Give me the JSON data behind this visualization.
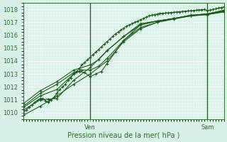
{
  "title": "",
  "xlabel": "Pression niveau de la mer( hPa )",
  "ylabel": "",
  "bg_color": "#d8f0e8",
  "plot_bg_color": "#d8f0e8",
  "grid_color": "#ffffff",
  "line_color": "#1a5c1a",
  "axis_color": "#2d6e2d",
  "tick_color": "#2d6e2d",
  "label_color": "#2d6e2d",
  "xlim": [
    0,
    72
  ],
  "ylim": [
    1009.5,
    1018.5
  ],
  "yticks": [
    1010,
    1011,
    1012,
    1013,
    1014,
    1015,
    1016,
    1017,
    1018
  ],
  "xtick_positions": [
    24,
    66
  ],
  "xtick_labels": [
    "Ven",
    "Sam"
  ],
  "vlines": [
    24,
    66
  ],
  "series": [
    {
      "x": [
        0,
        1,
        2,
        3,
        4,
        5,
        6,
        7,
        8,
        9,
        10,
        11,
        12,
        13,
        14,
        15,
        16,
        17,
        18,
        19,
        20,
        21,
        22,
        23,
        24,
        25,
        26,
        27,
        28,
        29,
        30,
        31,
        32,
        33,
        34,
        35,
        36,
        37,
        38,
        39,
        40,
        41,
        42,
        43,
        44,
        45,
        46,
        47,
        48,
        49,
        50,
        51,
        52,
        53,
        54,
        55,
        56,
        57,
        58,
        59,
        60,
        61,
        62,
        63,
        64,
        65,
        66,
        67,
        68,
        69,
        70,
        71,
        72
      ],
      "y": [
        1010.0,
        1010.2,
        1010.4,
        1010.6,
        1010.8,
        1010.95,
        1011.1,
        1011.1,
        1010.9,
        1010.8,
        1011.0,
        1011.2,
        1011.5,
        1011.8,
        1012.0,
        1012.2,
        1012.5,
        1012.7,
        1013.0,
        1013.2,
        1013.4,
        1013.7,
        1013.9,
        1014.1,
        1014.3,
        1014.5,
        1014.7,
        1014.9,
        1015.1,
        1015.3,
        1015.5,
        1015.7,
        1015.9,
        1016.1,
        1016.25,
        1016.4,
        1016.55,
        1016.7,
        1016.8,
        1016.9,
        1017.0,
        1017.1,
        1017.2,
        1017.3,
        1017.4,
        1017.5,
        1017.55,
        1017.6,
        1017.65,
        1017.7,
        1017.7,
        1017.72,
        1017.74,
        1017.76,
        1017.78,
        1017.8,
        1017.82,
        1017.84,
        1017.86,
        1017.88,
        1017.9,
        1017.92,
        1017.94,
        1017.96,
        1017.98,
        1018.0,
        1017.9,
        1017.95,
        1018.0,
        1018.05,
        1018.1,
        1018.15,
        1018.2
      ]
    },
    {
      "x": [
        0,
        6,
        12,
        18,
        24,
        30,
        36,
        42,
        48,
        54,
        60,
        66,
        72
      ],
      "y": [
        1009.8,
        1010.5,
        1011.3,
        1012.2,
        1013.0,
        1014.0,
        1015.5,
        1016.5,
        1017.0,
        1017.3,
        1017.5,
        1017.6,
        1017.8
      ]
    },
    {
      "x": [
        0,
        6,
        9,
        12,
        18,
        24,
        30,
        36,
        42,
        48,
        54,
        60,
        66,
        72
      ],
      "y": [
        1010.2,
        1011.0,
        1011.05,
        1011.1,
        1012.5,
        1013.5,
        1014.8,
        1015.9,
        1016.8,
        1017.1,
        1017.3,
        1017.5,
        1017.6,
        1017.85
      ]
    },
    {
      "x": [
        0,
        6,
        12,
        18,
        20,
        22,
        24,
        26,
        28,
        30,
        33,
        36,
        39,
        42,
        48,
        54,
        60,
        66,
        72
      ],
      "y": [
        1010.4,
        1011.3,
        1011.8,
        1013.0,
        1013.2,
        1013.1,
        1012.8,
        1013.0,
        1013.2,
        1013.8,
        1014.7,
        1015.6,
        1016.2,
        1016.8,
        1017.1,
        1017.3,
        1017.55,
        1017.65,
        1017.9
      ]
    },
    {
      "x": [
        0,
        6,
        12,
        18,
        21,
        24,
        27,
        30,
        36,
        42,
        48,
        54,
        60,
        66,
        72
      ],
      "y": [
        1010.5,
        1011.5,
        1012.2,
        1013.1,
        1013.3,
        1013.3,
        1013.6,
        1014.2,
        1015.6,
        1016.6,
        1017.0,
        1017.25,
        1017.5,
        1017.65,
        1017.9
      ]
    },
    {
      "x": [
        0,
        6,
        12,
        18,
        24,
        27,
        30,
        36,
        42,
        48,
        54,
        60,
        66,
        72
      ],
      "y": [
        1010.7,
        1011.7,
        1012.4,
        1013.3,
        1013.7,
        1014.1,
        1014.8,
        1015.9,
        1016.9,
        1017.1,
        1017.3,
        1017.55,
        1017.65,
        1017.95
      ]
    }
  ]
}
